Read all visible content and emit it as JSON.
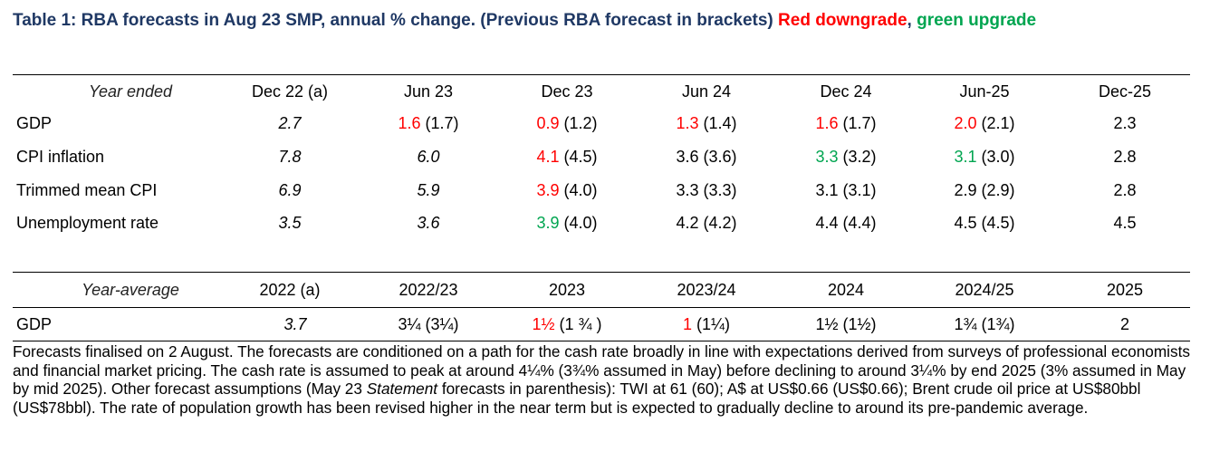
{
  "title": {
    "main": "Table 1: RBA forecasts in Aug 23 SMP, annual % change.  (Previous RBA forecast in brackets)",
    "red": "Red downgrade",
    "sep": ",",
    "green": "green upgrade"
  },
  "table1": {
    "header": {
      "label": "Year ended",
      "cols": [
        "Dec 22 (a)",
        "Jun 23",
        "Dec 23",
        "Jun 24",
        "Dec 24",
        "Jun-25",
        "Dec-25"
      ]
    },
    "rows": [
      {
        "label": "GDP",
        "cells": [
          {
            "value": "2.7",
            "prev": ""
          },
          {
            "value": "1.6",
            "prev": "(1.7)"
          },
          {
            "value": "0.9",
            "prev": "(1.2)"
          },
          {
            "value": "1.3",
            "prev": "(1.4)"
          },
          {
            "value": "1.6",
            "prev": "(1.7)"
          },
          {
            "value": "2.0",
            "prev": "(2.1)"
          },
          {
            "value": "2.3",
            "prev": ""
          }
        ]
      },
      {
        "label": "CPI inflation",
        "cells": [
          {
            "value": "7.8",
            "prev": ""
          },
          {
            "value": "6.0",
            "prev": ""
          },
          {
            "value": "4.1",
            "prev": "(4.5)"
          },
          {
            "value": "3.6",
            "prev": "(3.6)"
          },
          {
            "value": "3.3",
            "prev": "(3.2)"
          },
          {
            "value": "3.1",
            "prev": "(3.0)"
          },
          {
            "value": "2.8",
            "prev": ""
          }
        ]
      },
      {
        "label": "Trimmed mean CPI",
        "cells": [
          {
            "value": "6.9",
            "prev": ""
          },
          {
            "value": "5.9",
            "prev": ""
          },
          {
            "value": "3.9",
            "prev": "(4.0)"
          },
          {
            "value": "3.3",
            "prev": "(3.3)"
          },
          {
            "value": "3.1",
            "prev": "(3.1)"
          },
          {
            "value": "2.9",
            "prev": "(2.9)"
          },
          {
            "value": "2.8",
            "prev": ""
          }
        ]
      },
      {
        "label": "Unemployment rate",
        "cells": [
          {
            "value": "3.5",
            "prev": ""
          },
          {
            "value": "3.6",
            "prev": ""
          },
          {
            "value": "3.9",
            "prev": "(4.0)"
          },
          {
            "value": "4.2",
            "prev": "(4.2)"
          },
          {
            "value": "4.4",
            "prev": "(4.4)"
          },
          {
            "value": "4.5",
            "prev": "(4.5)"
          },
          {
            "value": "4.5",
            "prev": ""
          }
        ]
      }
    ]
  },
  "table2": {
    "header": {
      "label": "Year-average",
      "cols": [
        "2022 (a)",
        "2022/23",
        "2023",
        "2023/24",
        "2024",
        "2024/25",
        "2025"
      ]
    },
    "rows": [
      {
        "label": "GDP",
        "cells": [
          {
            "value": "3.7",
            "prev": ""
          },
          {
            "value": "3¼",
            "prev": "(3¼)"
          },
          {
            "value": "1½",
            "prev": "(1 ¾ )"
          },
          {
            "value": "1",
            "prev": "(1¼)"
          },
          {
            "value": "1½",
            "prev": "(1½)"
          },
          {
            "value": "1¾",
            "prev": "(1¾)"
          },
          {
            "value": "2",
            "prev": ""
          }
        ]
      }
    ]
  },
  "footnote": {
    "part1": "Forecasts finalised on 2 August. The forecasts are conditioned on a path for the cash rate broadly in line with expectations derived from surveys of professional economists and financial market pricing. The cash rate is assumed to peak at around 4¼% (3¾% assumed in May) before declining to around 3¼% by end 2025 (3% assumed in May by mid 2025). Other forecast assumptions (May 23 ",
    "italic": "Statement",
    "part2": " forecasts in parenthesis): TWI at 61 (60); A$ at US$0.66 (US$0.66); Brent crude oil price at US$80bbl (US$78bbl). The rate of population growth has been revised higher in the near term but is expected to gradually decline to around its pre-pandemic average."
  }
}
